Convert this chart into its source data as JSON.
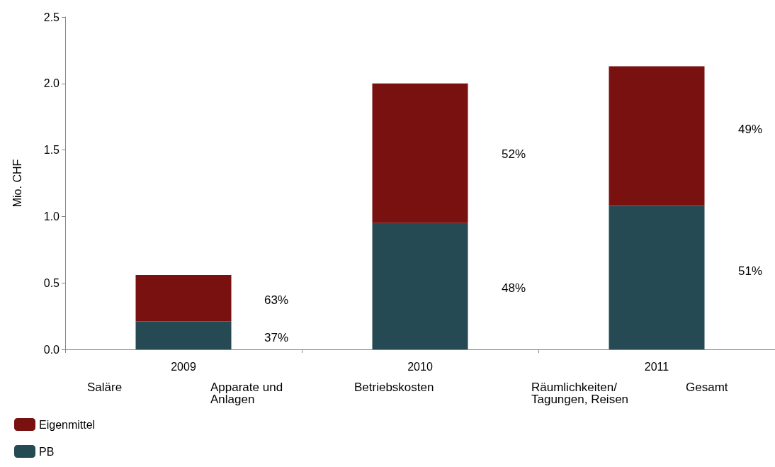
{
  "chart_data": {
    "type": "bar",
    "stacked": true,
    "ylabel": "Mio. CHF",
    "categories": [
      "2009",
      "2010",
      "2011"
    ],
    "series": [
      {
        "name": "PB",
        "color": "#264a53",
        "values": [
          0.21,
          0.95,
          1.08
        ]
      },
      {
        "name": "Eigenmittel",
        "color": "#7a1111",
        "values": [
          0.35,
          1.05,
          1.05
        ]
      }
    ],
    "ylim": [
      0,
      2.5
    ],
    "yticks": [
      {
        "value": 0,
        "label": "0.0"
      },
      {
        "value": 0.5,
        "label": "0.5"
      },
      {
        "value": 1,
        "label": "1.0"
      },
      {
        "value": 1.5,
        "label": "1.5"
      },
      {
        "value": 2,
        "label": "2.0"
      },
      {
        "value": 2.5,
        "label": "2.5"
      }
    ],
    "grid": false,
    "legend": "bottom left",
    "annotations": [
      "Saläre",
      "Apparate und Anlagen",
      "Betriebskosten",
      "Räumlichkeiten/Tagungen, Reisen",
      "Gesamt",
      "37%",
      "63%",
      "48%",
      "52%",
      "51%",
      "49%"
    ]
  }
}
